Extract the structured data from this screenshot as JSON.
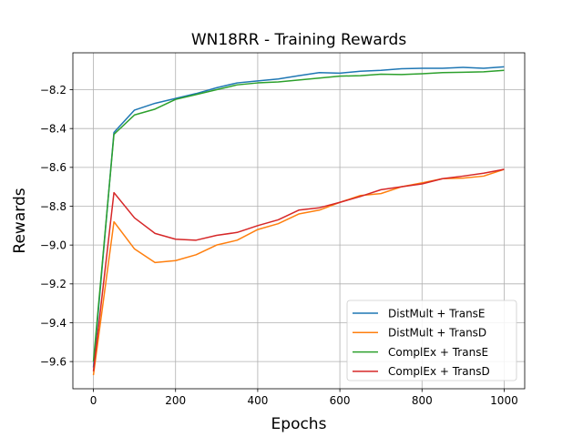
{
  "chart_data": {
    "type": "line",
    "title": "WN18RR - Training Rewards",
    "xlabel": "Epochs",
    "ylabel": "Rewards",
    "xlim": [
      -50,
      1050
    ],
    "ylim": [
      -9.74,
      -8.01
    ],
    "xticks": [
      0,
      200,
      400,
      600,
      800,
      1000
    ],
    "xtick_labels": [
      "0",
      "200",
      "400",
      "600",
      "800",
      "1000"
    ],
    "yticks": [
      -9.6,
      -9.4,
      -9.2,
      -9.0,
      -8.8,
      -8.6,
      -8.4,
      -8.2
    ],
    "ytick_labels": [
      "−9.6",
      "−9.4",
      "−9.2",
      "−9.0",
      "−8.8",
      "−8.6",
      "−8.4",
      "−8.2"
    ],
    "grid": true,
    "legend_position": "lower-right",
    "x": [
      0,
      50,
      100,
      150,
      200,
      250,
      300,
      350,
      400,
      450,
      500,
      550,
      600,
      650,
      700,
      750,
      800,
      850,
      900,
      950,
      1000
    ],
    "series": [
      {
        "name": "DistMult + TransE",
        "color": "#1f77b4",
        "values": [
          -9.63,
          -8.42,
          -8.305,
          -8.27,
          -8.245,
          -8.22,
          -8.19,
          -8.165,
          -8.155,
          -8.145,
          -8.128,
          -8.112,
          -8.115,
          -8.105,
          -8.1,
          -8.092,
          -8.09,
          -8.09,
          -8.085,
          -8.09,
          -8.082
        ]
      },
      {
        "name": "DistMult + TransD",
        "color": "#ff7f0e",
        "values": [
          -9.67,
          -8.88,
          -9.02,
          -9.09,
          -9.08,
          -9.05,
          -9.0,
          -8.975,
          -8.92,
          -8.89,
          -8.84,
          -8.82,
          -8.78,
          -8.745,
          -8.735,
          -8.7,
          -8.68,
          -8.658,
          -8.655,
          -8.645,
          -8.61
        ]
      },
      {
        "name": "ComplEx + TransE",
        "color": "#2ca02c",
        "values": [
          -9.6,
          -8.43,
          -8.33,
          -8.3,
          -8.25,
          -8.225,
          -8.2,
          -8.175,
          -8.165,
          -8.16,
          -8.15,
          -8.14,
          -8.13,
          -8.128,
          -8.12,
          -8.122,
          -8.118,
          -8.112,
          -8.11,
          -8.108,
          -8.1
        ]
      },
      {
        "name": "ComplEx + TransD",
        "color": "#d62728",
        "values": [
          -9.65,
          -8.73,
          -8.86,
          -8.94,
          -8.97,
          -8.975,
          -8.95,
          -8.935,
          -8.9,
          -8.87,
          -8.82,
          -8.808,
          -8.78,
          -8.75,
          -8.715,
          -8.7,
          -8.685,
          -8.658,
          -8.645,
          -8.63,
          -8.61
        ]
      }
    ]
  }
}
